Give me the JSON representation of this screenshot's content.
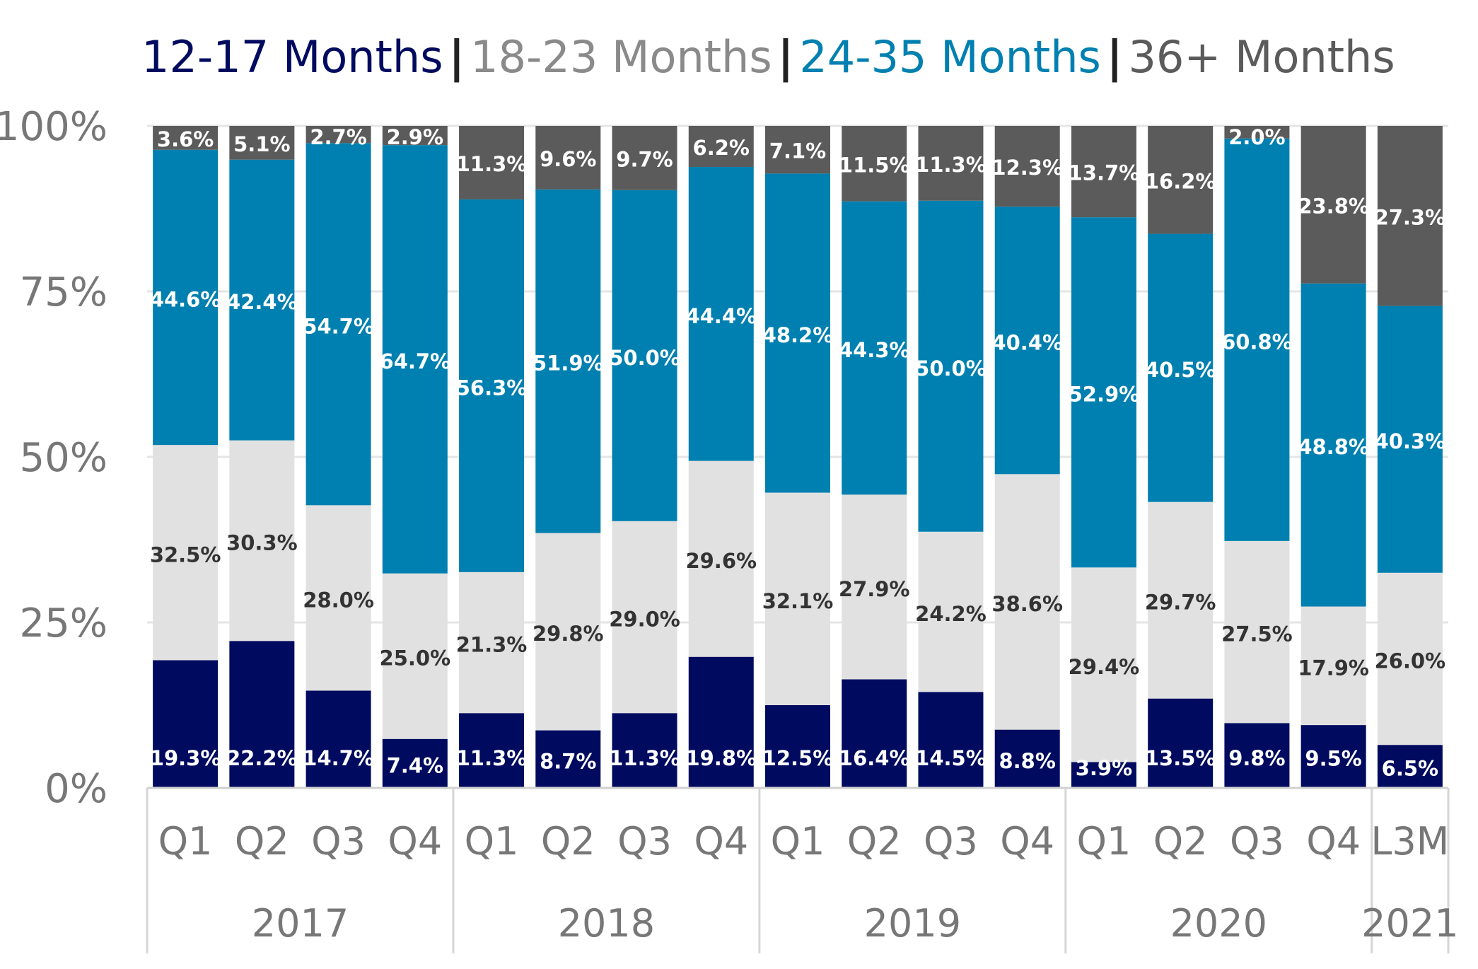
{
  "colors": {
    "s12_17": "#000b5f",
    "s18_23": "#e1e1e1",
    "s24_35": "#0080b0",
    "s36plus": "#5b5b5b",
    "axis_text": "#777777",
    "grid": "#e5e5e5"
  },
  "chart_data": {
    "type": "bar",
    "stacked": true,
    "percent": true,
    "title": "",
    "xlabel": "",
    "ylabel": "",
    "ylim": [
      0,
      100
    ],
    "y_ticks": [
      "0%",
      "25%",
      "50%",
      "75%",
      "100%"
    ],
    "grid": true,
    "legend_position": "top",
    "categories": [
      "Q1",
      "Q2",
      "Q3",
      "Q4",
      "Q1",
      "Q2",
      "Q3",
      "Q4",
      "Q1",
      "Q2",
      "Q3",
      "Q4",
      "Q1",
      "Q2",
      "Q3",
      "Q4",
      "L3M"
    ],
    "groups": [
      {
        "label": "2017",
        "count": 4
      },
      {
        "label": "2018",
        "count": 4
      },
      {
        "label": "2019",
        "count": 4
      },
      {
        "label": "2020",
        "count": 4
      },
      {
        "label": "2021",
        "count": 1
      }
    ],
    "series": [
      {
        "name": "12-17 Months",
        "color": "#000b5f",
        "values": [
          19.3,
          22.2,
          14.7,
          7.4,
          11.3,
          8.7,
          11.3,
          19.8,
          12.5,
          16.4,
          14.5,
          8.8,
          3.9,
          13.5,
          9.8,
          9.5,
          6.5
        ],
        "labels": [
          "19.3%",
          "22.2%",
          "14.7%",
          "7.4%",
          "11.3%",
          "8.7%",
          "11.3%",
          "19.8%",
          "12.5%",
          "16.4%",
          "14.5%",
          "8.8%",
          "3.9%",
          "13.5%",
          "9.8%",
          "9.5%",
          "6.5%"
        ]
      },
      {
        "name": "18-23 Months",
        "color": "#e1e1e1",
        "values": [
          32.5,
          30.3,
          28.0,
          25.0,
          21.3,
          29.8,
          29.0,
          29.6,
          32.1,
          27.9,
          24.2,
          38.6,
          29.4,
          29.7,
          27.5,
          17.9,
          26.0
        ],
        "labels": [
          "32.5%",
          "30.3%",
          "28.0%",
          "25.0%",
          "21.3%",
          "29.8%",
          "29.0%",
          "29.6%",
          "32.1%",
          "27.9%",
          "24.2%",
          "38.6%",
          "29.4%",
          "29.7%",
          "27.5%",
          "17.9%",
          "26.0%"
        ]
      },
      {
        "name": "24-35 Months",
        "color": "#0080b0",
        "values": [
          44.6,
          42.4,
          54.7,
          64.7,
          56.3,
          51.9,
          50.0,
          44.4,
          48.2,
          44.3,
          50.0,
          40.4,
          52.9,
          40.5,
          60.8,
          48.8,
          40.3
        ],
        "labels": [
          "44.6%",
          "42.4%",
          "54.7%",
          "64.7%",
          "56.3%",
          "51.9%",
          "50.0%",
          "44.4%",
          "48.2%",
          "44.3%",
          "50.0%",
          "40.4%",
          "52.9%",
          "40.5%",
          "60.8%",
          "48.8%",
          "40.3%"
        ]
      },
      {
        "name": "36+ Months",
        "color": "#5b5b5b",
        "values": [
          3.6,
          5.1,
          2.7,
          2.9,
          11.3,
          9.6,
          9.7,
          6.2,
          7.1,
          11.5,
          11.3,
          12.3,
          13.7,
          16.2,
          2.0,
          23.8,
          27.3
        ],
        "labels": [
          "3.6%",
          "5.1%",
          "2.7%",
          "2.9%",
          "11.3%",
          "9.6%",
          "9.7%",
          "6.2%",
          "7.1%",
          "11.5%",
          "11.3%",
          "12.3%",
          "13.7%",
          "16.2%",
          "2.0%",
          "23.8%",
          "27.3%"
        ]
      }
    ]
  }
}
